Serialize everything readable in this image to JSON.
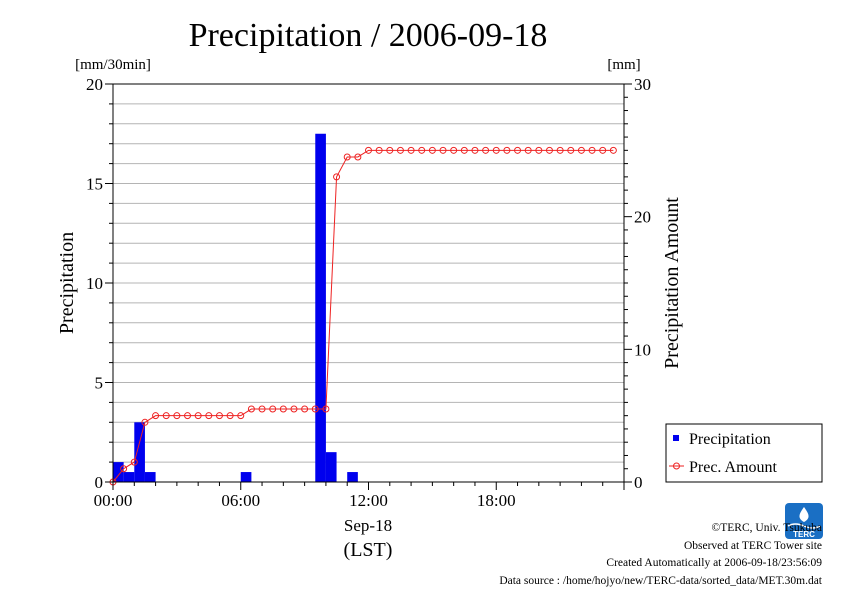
{
  "chart_data": {
    "type": "bar",
    "title": "Precipitation / 2006-09-18",
    "left_axis": {
      "label": "Precipitation",
      "unit": "[mm/30min]",
      "ylim": [
        0,
        20
      ],
      "ticks": [
        "0",
        "5",
        "10",
        "15",
        "20"
      ],
      "tick_values": [
        0,
        5,
        10,
        15,
        20
      ]
    },
    "right_axis": {
      "label": "Precipitation Amount",
      "unit": "[mm]",
      "ylim": [
        0,
        30
      ],
      "ticks": [
        "0",
        "10",
        "20",
        "30"
      ],
      "tick_values": [
        0,
        10,
        20,
        30
      ]
    },
    "x_axis": {
      "ticks": [
        "00:00",
        "06:00",
        "12:00",
        "18:00"
      ],
      "tick_hours": [
        0,
        6,
        12,
        18
      ],
      "date_label": "Sep-18",
      "label": "(LST)",
      "range_hours": [
        0,
        24
      ]
    },
    "grid": true,
    "legend_position": "bottom-right",
    "series": [
      {
        "name": "Precipitation",
        "type": "bar",
        "axis": "left",
        "color": "#0000ee",
        "time_hours": [
          0.0,
          0.5,
          1.0,
          1.5,
          6.0,
          9.5,
          10.0,
          11.0
        ],
        "values": [
          1.0,
          0.5,
          3.0,
          0.5,
          0.5,
          17.5,
          1.5,
          0.5
        ]
      },
      {
        "name": "Prec. Amount",
        "type": "line",
        "axis": "right",
        "color": "#ee2222",
        "time_hours": [
          0.0,
          0.5,
          1.0,
          1.5,
          2.0,
          2.5,
          3.0,
          3.5,
          4.0,
          4.5,
          5.0,
          5.5,
          6.0,
          6.5,
          7.0,
          7.5,
          8.0,
          8.5,
          9.0,
          9.5,
          10.0,
          10.5,
          11.0,
          11.5,
          12.0,
          12.5,
          13.0,
          13.5,
          14.0,
          14.5,
          15.0,
          15.5,
          16.0,
          16.5,
          17.0,
          17.5,
          18.0,
          18.5,
          19.0,
          19.5,
          20.0,
          20.5,
          21.0,
          21.5,
          22.0,
          22.5,
          23.0,
          23.5
        ],
        "values": [
          0.0,
          1.0,
          1.5,
          4.5,
          5.0,
          5.0,
          5.0,
          5.0,
          5.0,
          5.0,
          5.0,
          5.0,
          5.0,
          5.5,
          5.5,
          5.5,
          5.5,
          5.5,
          5.5,
          5.5,
          5.5,
          23.0,
          24.5,
          24.5,
          25.0,
          25.0,
          25.0,
          25.0,
          25.0,
          25.0,
          25.0,
          25.0,
          25.0,
          25.0,
          25.0,
          25.0,
          25.0,
          25.0,
          25.0,
          25.0,
          25.0,
          25.0,
          25.0,
          25.0,
          25.0,
          25.0,
          25.0,
          25.0
        ]
      }
    ]
  },
  "logo": {
    "text": "TERC",
    "color": "#1a6fc4"
  },
  "footer": {
    "copyright": "©TERC, Univ. Tsukuba",
    "observed": "Observed at TERC Tower site",
    "created": "Created Automatically at 2006-09-18/23:56:09",
    "source": "Data source : /home/hojyo/new/TERC-data/sorted_data/MET.30m.dat"
  }
}
